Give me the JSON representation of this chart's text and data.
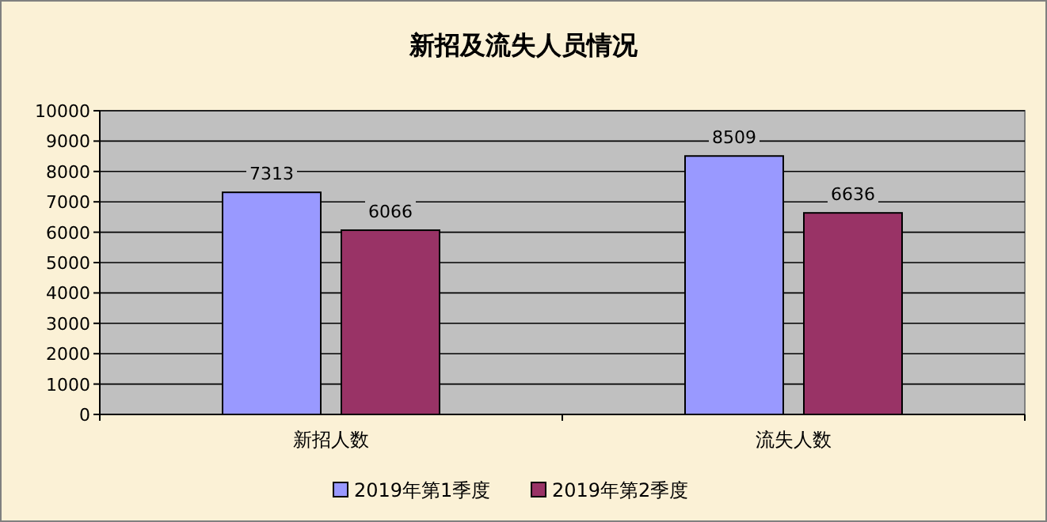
{
  "chart_data": {
    "type": "bar",
    "title": "新招及流失人员情况",
    "categories": [
      "新招人数",
      "流失人数"
    ],
    "series": [
      {
        "name": "2019年第1季度",
        "color": "#9999ff",
        "values": [
          7313,
          8509
        ]
      },
      {
        "name": "2019年第2季度",
        "color": "#993366",
        "values": [
          6066,
          6636
        ]
      }
    ],
    "ylim": [
      0,
      10000
    ],
    "yticks": [
      0,
      1000,
      2000,
      3000,
      4000,
      5000,
      6000,
      7000,
      8000,
      9000,
      10000
    ],
    "grid": "y",
    "legend": "bottom",
    "data_labels": true
  }
}
